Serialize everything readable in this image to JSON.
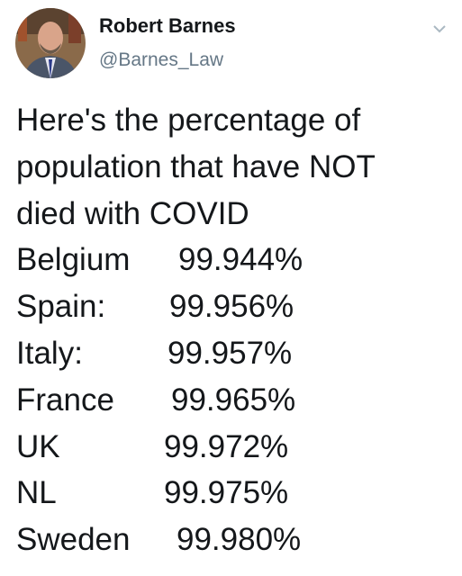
{
  "tweet": {
    "author": "Robert Barnes",
    "handle": "@Barnes_Law",
    "text_lines": [
      "Here's the percentage of",
      "population that have NOT",
      "died with COVID"
    ],
    "rows": [
      [
        "Belgium",
        "99.944%"
      ],
      [
        "Spain:",
        "99.956%"
      ],
      [
        "Italy:",
        "99.957%"
      ],
      [
        "France",
        "99.965%"
      ],
      [
        "UK",
        "99.972%"
      ],
      [
        "NL",
        "99.975%"
      ],
      [
        "Sweden",
        "99.980%"
      ]
    ]
  }
}
